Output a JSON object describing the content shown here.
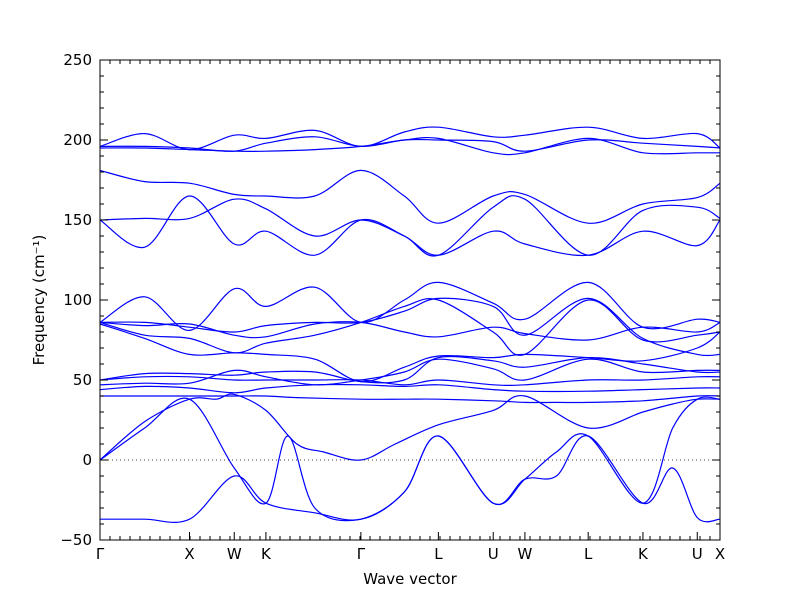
{
  "chart_data": {
    "type": "line",
    "title": "",
    "xlabel": "Wave vector",
    "ylabel": "Frequency (cm⁻¹)",
    "ylim": [
      -50,
      250
    ],
    "yticks": [
      -50,
      0,
      50,
      100,
      150,
      200,
      250
    ],
    "x_ticks": [
      {
        "label": "Γ",
        "x": 0.0
      },
      {
        "label": "X",
        "x": 1.0
      },
      {
        "label": "W",
        "x": 1.5
      },
      {
        "label": "K",
        "x": 1.854
      },
      {
        "label": "Γ",
        "x": 2.915
      },
      {
        "label": "L",
        "x": 3.781
      },
      {
        "label": "U",
        "x": 4.394
      },
      {
        "label": "W",
        "x": 4.748
      },
      {
        "label": "L",
        "x": 5.455
      },
      {
        "label": "K",
        "x": 6.067
      },
      {
        "label": "U",
        "x": 6.674
      },
      {
        "label": "X",
        "x": 6.928
      }
    ],
    "zero_line": 0,
    "line_color": "#0000ff",
    "grid": false,
    "series": [
      {
        "x": [
          0,
          0.5,
          1,
          1.5,
          1.854,
          2.4,
          2.915,
          3.4,
          3.781,
          4.394,
          4.748,
          5.1,
          5.455,
          6.067,
          6.4,
          6.674,
          6.928
        ],
        "y": [
          -37,
          -37,
          -37,
          -10,
          -27,
          -33,
          -37,
          -20,
          15,
          -27,
          -12,
          -10,
          15,
          -27,
          -5,
          -36,
          -37
        ]
      },
      {
        "x": [
          0,
          0.5,
          1,
          1.5,
          1.854,
          2.1,
          2.4,
          2.915,
          3.4,
          3.781,
          4.394,
          4.748,
          5.1,
          5.455,
          6.067,
          6.4,
          6.674,
          6.928
        ],
        "y": [
          0,
          20,
          38,
          -5,
          -27,
          15,
          -30,
          -37,
          -20,
          15,
          -27,
          -12,
          5,
          15,
          -27,
          20,
          38,
          38
        ]
      },
      {
        "x": [
          0,
          0.5,
          1,
          1.3,
          1.5,
          1.854,
          2.2,
          2.5,
          2.915,
          3.3,
          3.781,
          4.394,
          4.748,
          5.455,
          6.067,
          6.4,
          6.674,
          6.928
        ],
        "y": [
          0,
          24,
          38,
          38,
          41,
          31,
          10,
          5,
          0,
          10,
          22,
          31,
          40,
          20,
          30,
          35,
          38,
          38
        ]
      },
      {
        "x": [
          0,
          0.5,
          1,
          1.5,
          1.854,
          2.2,
          2.915,
          3.4,
          3.781,
          4.394,
          4.748,
          5.1,
          5.455,
          6.067,
          6.674,
          6.928
        ],
        "y": [
          40,
          40,
          40,
          40,
          40,
          39,
          38,
          38,
          38,
          37,
          36,
          36,
          36,
          37,
          40,
          40
        ]
      },
      {
        "x": [
          0,
          0.5,
          1,
          1.5,
          1.854,
          2.4,
          2.915,
          3.4,
          3.781,
          4.394,
          4.748,
          5.455,
          6.067,
          6.674,
          6.928
        ],
        "y": [
          44,
          46,
          45,
          42,
          45,
          47,
          47,
          46,
          47,
          44,
          43,
          43,
          44,
          45,
          45
        ]
      },
      {
        "x": [
          0,
          0.5,
          1,
          1.5,
          1.854,
          2.4,
          2.915,
          3.4,
          3.781,
          4.394,
          4.748,
          5.455,
          6.067,
          6.674,
          6.928
        ],
        "y": [
          47,
          48,
          48,
          56,
          52,
          47,
          50,
          55,
          63,
          57,
          50,
          63,
          55,
          56,
          56
        ]
      },
      {
        "x": [
          0,
          0.5,
          1,
          1.5,
          1.854,
          2.4,
          2.915,
          3.4,
          3.781,
          4.394,
          4.748,
          5.455,
          6.067,
          6.674,
          6.928
        ],
        "y": [
          50,
          54,
          54,
          53,
          55,
          55,
          49,
          50,
          64,
          62,
          58,
          64,
          60,
          55,
          55
        ]
      },
      {
        "x": [
          0,
          0.5,
          1,
          1.5,
          1.854,
          2.4,
          2.915,
          3.4,
          3.781,
          4.394,
          4.748,
          5.455,
          6.067,
          6.674,
          6.928
        ],
        "y": [
          50,
          52,
          52,
          50,
          50,
          50,
          50,
          47,
          50,
          47,
          47,
          50,
          50,
          52,
          52
        ]
      },
      {
        "x": [
          0,
          0.5,
          1,
          1.5,
          1.854,
          2.4,
          2.915,
          3.4,
          3.781,
          4.394,
          4.748,
          5.455,
          6.067,
          6.674,
          6.928
        ],
        "y": [
          85,
          76,
          66,
          67,
          66,
          63,
          49,
          58,
          65,
          64,
          66,
          64,
          62,
          70,
          80
        ]
      },
      {
        "x": [
          0,
          0.5,
          1,
          1.5,
          1.854,
          2.4,
          2.915,
          3.4,
          3.781,
          4.394,
          4.748,
          5.455,
          6.067,
          6.674,
          6.928
        ],
        "y": [
          86,
          78,
          76,
          67,
          73,
          78,
          86,
          96,
          100,
          80,
          66,
          100,
          75,
          78,
          80
        ]
      },
      {
        "x": [
          0,
          0.5,
          1,
          1.5,
          1.854,
          2.4,
          2.915,
          3.4,
          3.781,
          4.394,
          4.748,
          5.455,
          6.067,
          6.674,
          6.928
        ],
        "y": [
          86,
          86,
          83,
          80,
          84,
          86,
          86,
          93,
          101,
          96,
          78,
          101,
          76,
          66,
          66
        ]
      },
      {
        "x": [
          0,
          0.5,
          1,
          1.5,
          1.854,
          2.4,
          2.915,
          3.4,
          3.781,
          4.394,
          4.748,
          5.455,
          6.067,
          6.674,
          6.928
        ],
        "y": [
          86,
          102,
          81,
          107,
          96,
          108,
          86,
          100,
          111,
          98,
          88,
          111,
          83,
          88,
          86
        ]
      },
      {
        "x": [
          0,
          0.5,
          1,
          1.5,
          1.854,
          2.4,
          2.915,
          3.4,
          3.781,
          4.394,
          4.748,
          5.455,
          6.067,
          6.674,
          6.928
        ],
        "y": [
          86,
          84,
          85,
          78,
          77,
          85,
          86,
          80,
          77,
          83,
          79,
          75,
          83,
          80,
          86
        ]
      },
      {
        "x": [
          0,
          0.5,
          1,
          1.5,
          1.854,
          2.4,
          2.915,
          3.4,
          3.781,
          4.394,
          4.748,
          5.455,
          6.067,
          6.674,
          6.928
        ],
        "y": [
          150,
          133,
          165,
          135,
          143,
          128,
          150,
          140,
          128,
          143,
          135,
          128,
          143,
          134,
          150
        ]
      },
      {
        "x": [
          0,
          0.5,
          1,
          1.5,
          1.854,
          2.4,
          2.915,
          3.4,
          3.781,
          4.394,
          4.748,
          5.455,
          6.067,
          6.674,
          6.928
        ],
        "y": [
          150,
          151,
          151,
          163,
          157,
          140,
          150,
          140,
          128,
          158,
          163,
          128,
          156,
          158,
          151
        ]
      },
      {
        "x": [
          0,
          0.5,
          1,
          1.5,
          1.854,
          2.4,
          2.915,
          3.4,
          3.781,
          4.394,
          4.748,
          5.455,
          6.067,
          6.674,
          6.928
        ],
        "y": [
          181,
          174,
          173,
          166,
          165,
          165,
          181,
          165,
          148,
          165,
          166,
          148,
          160,
          164,
          173
        ]
      },
      {
        "x": [
          0,
          0.5,
          1,
          1.5,
          1.854,
          2.4,
          2.915,
          3.4,
          3.781,
          4.394,
          4.748,
          5.455,
          6.067,
          6.674,
          6.928
        ],
        "y": [
          195,
          195,
          194,
          193,
          193,
          194,
          196,
          200,
          201,
          192,
          192,
          201,
          192,
          192,
          192
        ]
      },
      {
        "x": [
          0,
          0.5,
          1,
          1.5,
          1.854,
          2.4,
          2.915,
          3.4,
          3.781,
          4.394,
          4.748,
          5.455,
          6.067,
          6.674,
          6.928
        ],
        "y": [
          196,
          196,
          195,
          193,
          198,
          202,
          196,
          200,
          200,
          199,
          193,
          200,
          198,
          196,
          195
        ]
      },
      {
        "x": [
          0,
          0.5,
          1,
          1.5,
          1.854,
          2.4,
          2.915,
          3.4,
          3.781,
          4.394,
          4.748,
          5.455,
          6.067,
          6.674,
          6.928
        ],
        "y": [
          196,
          204,
          194,
          203,
          201,
          206,
          196,
          205,
          208,
          202,
          203,
          208,
          201,
          204,
          195
        ]
      }
    ]
  }
}
